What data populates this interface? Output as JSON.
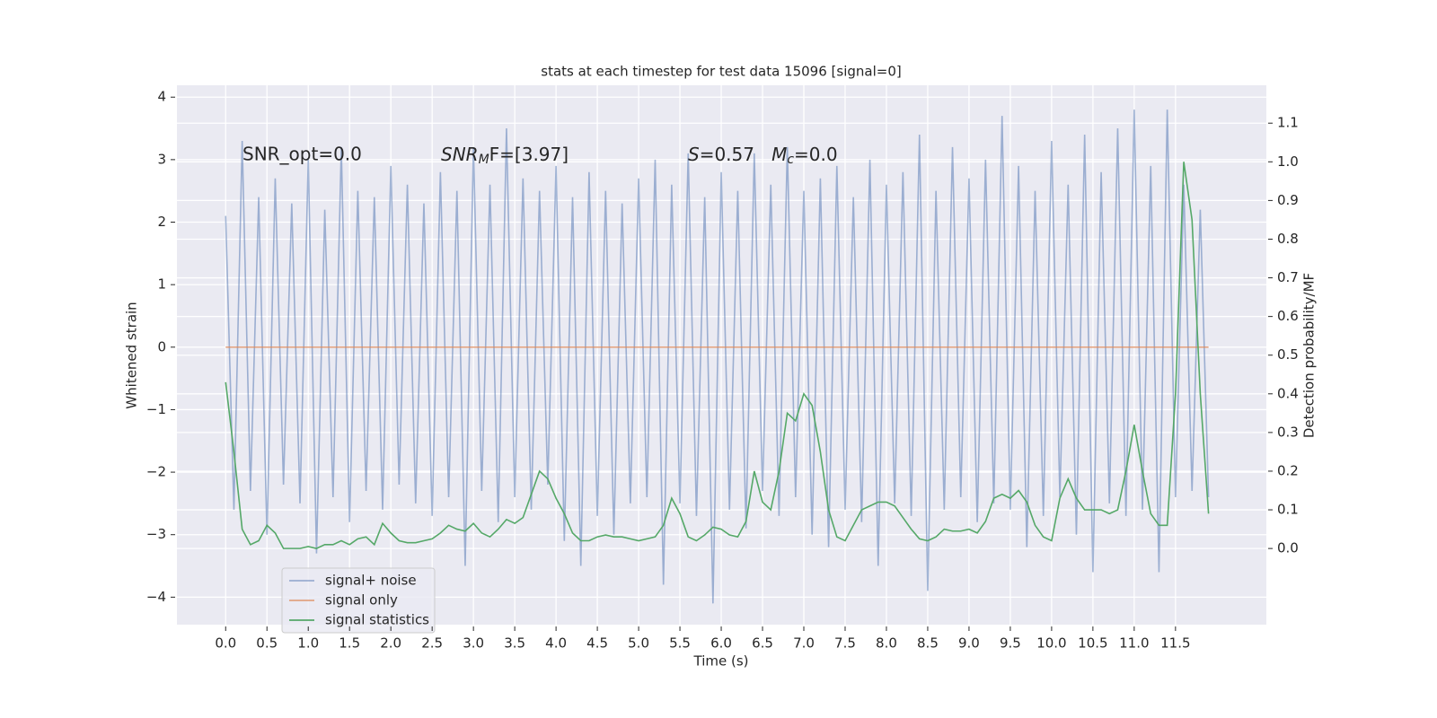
{
  "chart_data": {
    "type": "line",
    "title": "stats at each timestep for test data 15096 [signal=0]",
    "xlabel": "Time (s)",
    "ylabel": "Whitened strain",
    "y2label": "Detection probability/MF",
    "annotations": [
      "SNR_opt=0.0",
      [
        "SNR",
        "M",
        "F=[3.97]"
      ],
      [
        "S",
        "=0.57   ",
        "M",
        "c",
        "=0.0"
      ]
    ],
    "x": [
      0.0,
      0.1,
      0.2,
      0.3,
      0.4,
      0.5,
      0.6,
      0.7,
      0.8,
      0.9,
      1.0,
      1.1,
      1.2,
      1.3,
      1.4,
      1.5,
      1.6,
      1.7,
      1.8,
      1.9,
      2.0,
      2.1,
      2.2,
      2.3,
      2.4,
      2.5,
      2.6,
      2.7,
      2.8,
      2.9,
      3.0,
      3.1,
      3.2,
      3.3,
      3.4,
      3.5,
      3.6,
      3.7,
      3.8,
      3.9,
      4.0,
      4.1,
      4.2,
      4.3,
      4.4,
      4.5,
      4.6,
      4.7,
      4.8,
      4.9,
      5.0,
      5.1,
      5.2,
      5.3,
      5.4,
      5.5,
      5.6,
      5.7,
      5.8,
      5.9,
      6.0,
      6.1,
      6.2,
      6.3,
      6.4,
      6.5,
      6.6,
      6.7,
      6.8,
      6.9,
      7.0,
      7.1,
      7.2,
      7.3,
      7.4,
      7.5,
      7.6,
      7.7,
      7.8,
      7.9,
      8.0,
      8.1,
      8.2,
      8.3,
      8.4,
      8.5,
      8.6,
      8.7,
      8.8,
      8.9,
      9.0,
      9.1,
      9.2,
      9.3,
      9.4,
      9.5,
      9.6,
      9.7,
      9.8,
      9.9,
      10.0,
      10.1,
      10.2,
      10.3,
      10.4,
      10.5,
      10.6,
      10.7,
      10.8,
      10.9,
      11.0,
      11.1,
      11.2,
      11.3,
      11.4,
      11.5,
      11.6,
      11.7,
      11.8,
      11.9
    ],
    "series": [
      {
        "name": "signal+ noise",
        "color": "#4c72b0",
        "opacity": 0.5,
        "axis": "y",
        "values": [
          2.1,
          -2.6,
          3.3,
          -2.3,
          2.4,
          -3.0,
          2.7,
          -2.2,
          2.3,
          -2.5,
          3.0,
          -3.3,
          2.2,
          -2.4,
          3.2,
          -2.8,
          2.5,
          -2.3,
          2.4,
          -2.6,
          2.9,
          -2.2,
          2.6,
          -2.5,
          2.3,
          -2.7,
          2.8,
          -2.4,
          2.5,
          -3.5,
          3.2,
          -2.3,
          2.6,
          -2.8,
          3.5,
          -2.4,
          2.7,
          -2.6,
          2.5,
          -2.2,
          2.9,
          -3.1,
          2.4,
          -3.5,
          2.8,
          -2.7,
          2.5,
          -3.0,
          2.3,
          -2.5,
          2.7,
          -2.4,
          3.0,
          -3.8,
          2.6,
          -2.5,
          3.1,
          -2.7,
          2.4,
          -4.1,
          2.8,
          -2.6,
          2.5,
          -2.9,
          3.1,
          -2.3,
          2.6,
          -2.7,
          3.2,
          -2.4,
          2.5,
          -3.0,
          2.7,
          -3.2,
          2.9,
          -2.6,
          2.4,
          -2.8,
          3.0,
          -3.5,
          2.6,
          -2.5,
          2.8,
          -2.7,
          3.4,
          -3.9,
          2.5,
          -2.6,
          3.2,
          -2.4,
          2.7,
          -2.8,
          3.0,
          -2.5,
          3.7,
          -2.6,
          2.9,
          -3.2,
          2.5,
          -2.7,
          3.3,
          -2.4,
          2.6,
          -3.0,
          3.4,
          -3.6,
          2.8,
          -2.5,
          3.5,
          -2.7,
          3.8,
          -2.6,
          2.9,
          -3.6,
          3.8,
          -2.4,
          2.6,
          -2.3,
          2.2,
          -2.4
        ]
      },
      {
        "name": "signal only",
        "color": "#dd8452",
        "opacity": 0.7,
        "axis": "y",
        "values": [
          0,
          0,
          0,
          0,
          0,
          0,
          0,
          0,
          0,
          0,
          0,
          0,
          0,
          0,
          0,
          0,
          0,
          0,
          0,
          0,
          0,
          0,
          0,
          0,
          0,
          0,
          0,
          0,
          0,
          0,
          0,
          0,
          0,
          0,
          0,
          0,
          0,
          0,
          0,
          0,
          0,
          0,
          0,
          0,
          0,
          0,
          0,
          0,
          0,
          0,
          0,
          0,
          0,
          0,
          0,
          0,
          0,
          0,
          0,
          0,
          0,
          0,
          0,
          0,
          0,
          0,
          0,
          0,
          0,
          0,
          0,
          0,
          0,
          0,
          0,
          0,
          0,
          0,
          0,
          0,
          0,
          0,
          0,
          0,
          0,
          0,
          0,
          0,
          0,
          0,
          0,
          0,
          0,
          0,
          0,
          0,
          0,
          0,
          0,
          0,
          0,
          0,
          0,
          0,
          0,
          0,
          0,
          0,
          0,
          0,
          0,
          0,
          0,
          0,
          0,
          0,
          0,
          0,
          0,
          0
        ]
      },
      {
        "name": "signal statistics",
        "color": "#55a868",
        "opacity": 1,
        "axis": "y2",
        "values": [
          0.43,
          0.25,
          0.05,
          0.01,
          0.02,
          0.06,
          0.04,
          0.0,
          0.0,
          0.0,
          0.005,
          0.0,
          0.01,
          0.01,
          0.02,
          0.01,
          0.025,
          0.03,
          0.01,
          0.065,
          0.04,
          0.02,
          0.015,
          0.015,
          0.02,
          0.025,
          0.04,
          0.06,
          0.05,
          0.045,
          0.065,
          0.04,
          0.03,
          0.05,
          0.075,
          0.065,
          0.08,
          0.14,
          0.2,
          0.18,
          0.13,
          0.09,
          0.04,
          0.02,
          0.02,
          0.03,
          0.035,
          0.03,
          0.03,
          0.025,
          0.02,
          0.025,
          0.03,
          0.06,
          0.13,
          0.09,
          0.03,
          0.02,
          0.035,
          0.055,
          0.05,
          0.035,
          0.03,
          0.07,
          0.2,
          0.12,
          0.1,
          0.2,
          0.35,
          0.33,
          0.4,
          0.37,
          0.25,
          0.1,
          0.03,
          0.02,
          0.06,
          0.1,
          0.11,
          0.12,
          0.12,
          0.11,
          0.08,
          0.05,
          0.025,
          0.02,
          0.03,
          0.05,
          0.045,
          0.045,
          0.05,
          0.04,
          0.07,
          0.13,
          0.14,
          0.13,
          0.15,
          0.12,
          0.06,
          0.03,
          0.02,
          0.13,
          0.18,
          0.13,
          0.1,
          0.1,
          0.1,
          0.09,
          0.1,
          0.2,
          0.32,
          0.2,
          0.09,
          0.06,
          0.06,
          0.4,
          1.0,
          0.85,
          0.4,
          0.09
        ]
      }
    ],
    "xlim": [
      -0.59,
      12.6
    ],
    "xticks": [
      {
        "value": 0,
        "label": "0.0"
      },
      {
        "value": 0.5,
        "label": "0.5"
      },
      {
        "value": 1,
        "label": "1.0"
      },
      {
        "value": 1.5,
        "label": "1.5"
      },
      {
        "value": 2,
        "label": "2.0"
      },
      {
        "value": 2.5,
        "label": "2.5"
      },
      {
        "value": 3,
        "label": "3.0"
      },
      {
        "value": 3.5,
        "label": "3.5"
      },
      {
        "value": 4,
        "label": "4.0"
      },
      {
        "value": 4.5,
        "label": "4.5"
      },
      {
        "value": 5,
        "label": "5.0"
      },
      {
        "value": 5.5,
        "label": "5.5"
      },
      {
        "value": 6,
        "label": "6.0"
      },
      {
        "value": 6.5,
        "label": "6.5"
      },
      {
        "value": 7,
        "label": "7.0"
      },
      {
        "value": 7.5,
        "label": "7.5"
      },
      {
        "value": 8,
        "label": "8.0"
      },
      {
        "value": 8.5,
        "label": "8.5"
      },
      {
        "value": 9,
        "label": "9.0"
      },
      {
        "value": 9.5,
        "label": "9.5"
      },
      {
        "value": 10,
        "label": "10.0"
      },
      {
        "value": 10.5,
        "label": "10.5"
      },
      {
        "value": 11,
        "label": "11.0"
      },
      {
        "value": 11.5,
        "label": "11.5"
      }
    ],
    "ylim": [
      -4.44,
      4.19
    ],
    "yticks": [
      {
        "value": -4,
        "label": "−4"
      },
      {
        "value": -3,
        "label": "−3"
      },
      {
        "value": -2,
        "label": "−2"
      },
      {
        "value": -1,
        "label": "−1"
      },
      0,
      1,
      2,
      3,
      4
    ],
    "y2lim": [
      -0.197,
      1.198
    ],
    "y2ticks": [
      {
        "value": 0,
        "label": "0.0"
      },
      {
        "value": 0.1,
        "label": "0.1"
      },
      {
        "value": 0.2,
        "label": "0.2"
      },
      {
        "value": 0.3,
        "label": "0.3"
      },
      {
        "value": 0.4,
        "label": "0.4"
      },
      {
        "value": 0.5,
        "label": "0.5"
      },
      {
        "value": 0.6,
        "label": "0.6"
      },
      {
        "value": 0.7,
        "label": "0.7"
      },
      {
        "value": 0.8,
        "label": "0.8"
      },
      {
        "value": 0.9,
        "label": "0.9"
      },
      {
        "value": 1.0,
        "label": "1.0"
      },
      {
        "value": 1.1,
        "label": "1.1"
      }
    ],
    "grid": true,
    "legend": "lower left"
  }
}
